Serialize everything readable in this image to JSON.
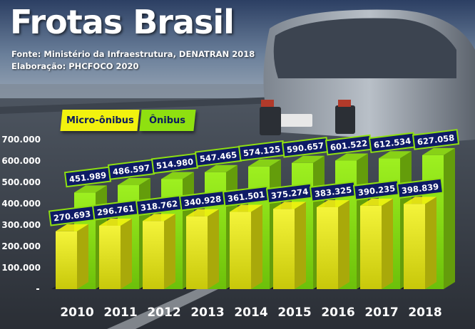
{
  "header": {
    "title": "Frotas Brasil",
    "source": "Fonte: Ministério da Infraestrutura, DENATRAN 2018",
    "elaboration": "Elaboração: PHCFOCO 2020"
  },
  "colors": {
    "micro": "#f2f20e",
    "onibus": "#8fe010",
    "label_bg": "#0e1b66",
    "label_border": "#8fe010"
  },
  "chart_data": {
    "type": "bar",
    "categories": [
      "2010",
      "2011",
      "2012",
      "2013",
      "2014",
      "2015",
      "2016",
      "2017",
      "2018"
    ],
    "series": [
      {
        "name": "Micro-ônibus",
        "values": [
          270693,
          296761,
          318762,
          340928,
          361501,
          375274,
          383325,
          390235,
          398839
        ],
        "labels": [
          "270.693",
          "296.761",
          "318.762",
          "340.928",
          "361.501",
          "375.274",
          "383.325",
          "390.235",
          "398.839"
        ]
      },
      {
        "name": "Ônibus",
        "values": [
          451989,
          486597,
          514980,
          547465,
          574125,
          590657,
          601522,
          612534,
          627058
        ],
        "labels": [
          "451.989",
          "486.597",
          "514.980",
          "547.465",
          "574.125",
          "590.657",
          "601.522",
          "612.534",
          "627.058"
        ]
      }
    ],
    "yticks": [
      "",
      "100.000",
      "200.000",
      "300.000",
      "400.000",
      "500.000",
      "600.000",
      "700.000"
    ],
    "ylim": [
      0,
      700000
    ],
    "legend_position": "top-left",
    "grid": false
  }
}
